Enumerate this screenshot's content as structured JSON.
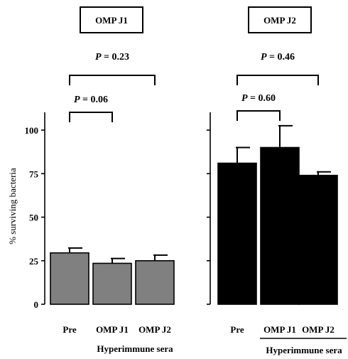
{
  "ylabel": "% surviving bacteria",
  "yticks": [
    0,
    25,
    50,
    75,
    100
  ],
  "group_label": "Hyperimmune sera",
  "chart_data": [
    {
      "type": "bar",
      "title": "OMP J1",
      "categories": [
        "Pre",
        "OMP J1",
        "OMP J2"
      ],
      "values": [
        29.5,
        23.5,
        25
      ],
      "errors": [
        2.8,
        2.8,
        3.2
      ],
      "bar_color": "#808080",
      "ylabel": "% surviving bacteria",
      "ylim": [
        0,
        110
      ],
      "comparisons": [
        {
          "from": "Pre",
          "to": "OMP J1",
          "p_prefix": "P",
          "p_text": " = 0.06"
        },
        {
          "from": "Pre",
          "to": "OMP J2",
          "p_prefix": "P",
          "p_text": " = 0.23"
        }
      ],
      "group_label": "Hyperimmune sera",
      "group_underline": false
    },
    {
      "type": "bar",
      "title": "OMP J2",
      "categories": [
        "Pre",
        "OMP J1",
        "OMP J2"
      ],
      "values": [
        81,
        90,
        74
      ],
      "errors": [
        9,
        12.5,
        2
      ],
      "bar_color": "#000000",
      "ylim": [
        0,
        110
      ],
      "comparisons": [
        {
          "from": "Pre",
          "to": "OMP J1",
          "p_prefix": "P",
          "p_text": " = 0.60"
        },
        {
          "from": "Pre",
          "to": "OMP J2",
          "p_prefix": "P",
          "p_text": " = 0.46"
        }
      ],
      "group_label": "Hyperimmune sera",
      "group_underline": true
    }
  ]
}
